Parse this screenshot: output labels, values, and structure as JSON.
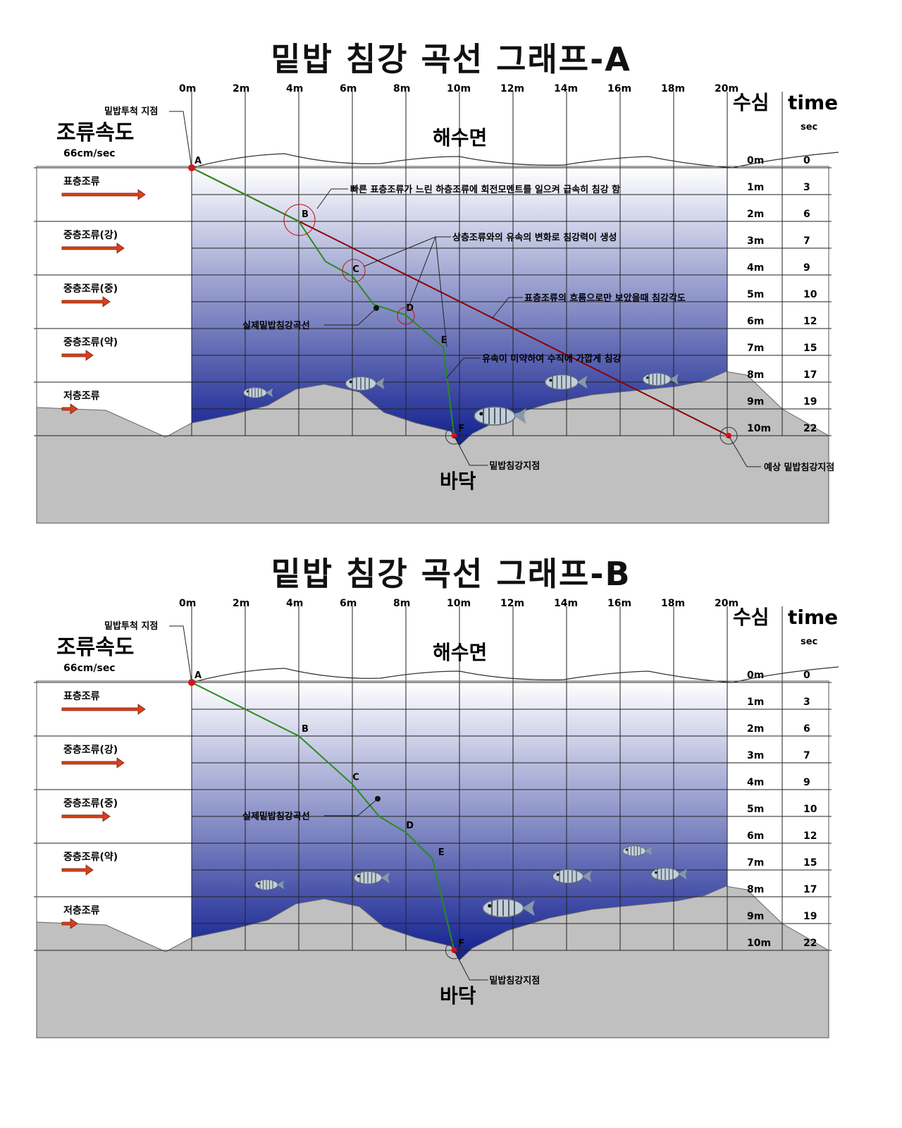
{
  "colors": {
    "water_top": "#ffffff",
    "water_bottom": "#0b1a8c",
    "seabed": "#c0c0c0",
    "actual_curve": "#2a8a1e",
    "expected_line": "#8b0000",
    "current_arrow": "#d9401a",
    "point_marker": "#e01010"
  },
  "labels": {
    "current_speed_title": "조류속도",
    "current_speed_value": "66cm/sec",
    "surface": "해수면",
    "bottom": "바닥",
    "depth_header": "수심",
    "time_header": "time",
    "time_unit": "sec",
    "cast_point": "밑밥투척 지점",
    "actual_curve": "실제밑밥침강곡선",
    "landing_point": "밑밥침강지점",
    "expected_landing": "예상 밑밥침강지점"
  },
  "distance_ticks": [
    "0m",
    "2m",
    "4m",
    "6m",
    "8m",
    "10m",
    "12m",
    "14m",
    "16m",
    "18m",
    "20m"
  ],
  "depth_rows": [
    {
      "depth": "0m",
      "time": "0"
    },
    {
      "depth": "1m",
      "time": "3"
    },
    {
      "depth": "2m",
      "time": "6"
    },
    {
      "depth": "3m",
      "time": "7"
    },
    {
      "depth": "4m",
      "time": "9"
    },
    {
      "depth": "5m",
      "time": "10"
    },
    {
      "depth": "6m",
      "time": "12"
    },
    {
      "depth": "7m",
      "time": "15"
    },
    {
      "depth": "8m",
      "time": "17"
    },
    {
      "depth": "9m",
      "time": "19"
    },
    {
      "depth": "10m",
      "time": "22"
    }
  ],
  "currents": [
    {
      "label": "표층조류",
      "strength": 4
    },
    {
      "label": "중층조류(강)",
      "strength": 3
    },
    {
      "label": "중층조류(중)",
      "strength": 2
    },
    {
      "label": "중층조류(약)",
      "strength": 1
    },
    {
      "label": "저층조류",
      "strength": 0
    }
  ],
  "point_labels": [
    "A",
    "B",
    "C",
    "D",
    "E",
    "F"
  ],
  "panels": [
    {
      "title": "밑밥 침강 곡선 그래프-A",
      "curve_points": [
        [
          0,
          0
        ],
        [
          4,
          2
        ],
        [
          5,
          3.5
        ],
        [
          6,
          4.05
        ],
        [
          6.8,
          5.1
        ],
        [
          8,
          5.5
        ],
        [
          9.4,
          6.7
        ],
        [
          9.8,
          10.0
        ]
      ],
      "annotations": [
        "빠른 표층조류가 느린 하층조류에 회전모멘트를 일으켜 급속히 침강 함",
        "상층조류와의 유속의 변화로 침강력이 생성",
        "표층조류의 흐름으로만 보았을때 침강각도",
        "유속이 미약하여  수직에 가깝게 침강"
      ]
    },
    {
      "title": "밑밥 침강 곡선 그래프-B",
      "curve_points": [
        [
          0,
          0
        ],
        [
          4,
          2
        ],
        [
          6,
          3.8
        ],
        [
          7,
          5.0
        ],
        [
          8,
          5.6
        ],
        [
          9,
          6.6
        ],
        [
          9.8,
          10.0
        ]
      ],
      "annotations": []
    }
  ]
}
